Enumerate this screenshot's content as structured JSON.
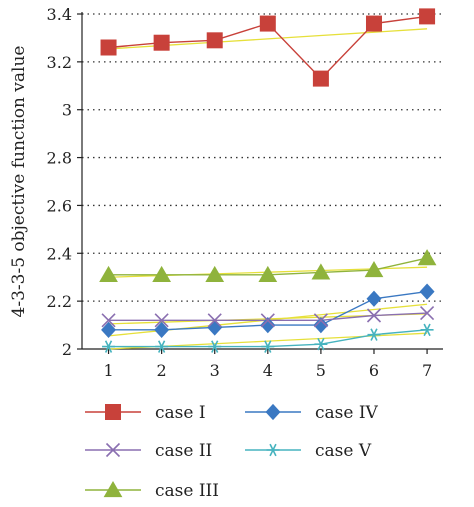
{
  "chart_data": {
    "type": "line",
    "ylabel": "4-3-3-5 objective function value",
    "xlabel": "",
    "title": "",
    "x": [
      1,
      2,
      3,
      4,
      5,
      6,
      7
    ],
    "ylim": [
      2,
      3.4
    ],
    "yticks": [
      2,
      2.2,
      2.4,
      2.6,
      2.8,
      3,
      3.2,
      3.4
    ],
    "ytick_labels": [
      "2",
      "2.2",
      "2.4",
      "2.6",
      "2.8",
      "3",
      "3.2",
      "3.4"
    ],
    "grid": "horizontal-dotted",
    "legend_position": "bottom",
    "series": [
      {
        "name": "case I",
        "marker": "square",
        "color": "#c8413a",
        "values": [
          3.26,
          3.28,
          3.29,
          3.36,
          3.13,
          3.36,
          3.39
        ]
      },
      {
        "name": "case II",
        "marker": "x",
        "color": "#8a6fb0",
        "values": [
          2.12,
          2.12,
          2.12,
          2.12,
          2.12,
          2.14,
          2.15
        ]
      },
      {
        "name": "case III",
        "marker": "triangle",
        "color": "#8fb33c",
        "values": [
          2.31,
          2.31,
          2.31,
          2.31,
          2.32,
          2.33,
          2.38
        ]
      },
      {
        "name": "case IV",
        "marker": "diamond",
        "color": "#3a78c2",
        "values": [
          2.08,
          2.08,
          2.09,
          2.1,
          2.1,
          2.21,
          2.24
        ]
      },
      {
        "name": "case V",
        "marker": "asterisk",
        "color": "#46b3bf",
        "values": [
          2.01,
          2.01,
          2.01,
          2.01,
          2.02,
          2.06,
          2.08
        ]
      }
    ],
    "trendlines": [
      {
        "series": "case I",
        "color": "#e6e03a",
        "values": [
          3.254,
          3.268,
          3.282,
          3.296,
          3.31,
          3.324,
          3.338
        ]
      },
      {
        "series": "case II",
        "color": "#e6e03a",
        "values": [
          2.105,
          2.112,
          2.119,
          2.126,
          2.133,
          2.14,
          2.147
        ]
      },
      {
        "series": "case III",
        "color": "#e6e03a",
        "values": [
          2.3,
          2.307,
          2.314,
          2.321,
          2.328,
          2.335,
          2.342
        ]
      },
      {
        "series": "case IV",
        "color": "#e6e03a",
        "values": [
          2.055,
          2.077,
          2.099,
          2.121,
          2.143,
          2.165,
          2.187
        ]
      },
      {
        "series": "case V",
        "color": "#e6e03a",
        "values": [
          2.0,
          2.011,
          2.022,
          2.033,
          2.044,
          2.055,
          2.066
        ]
      }
    ]
  }
}
